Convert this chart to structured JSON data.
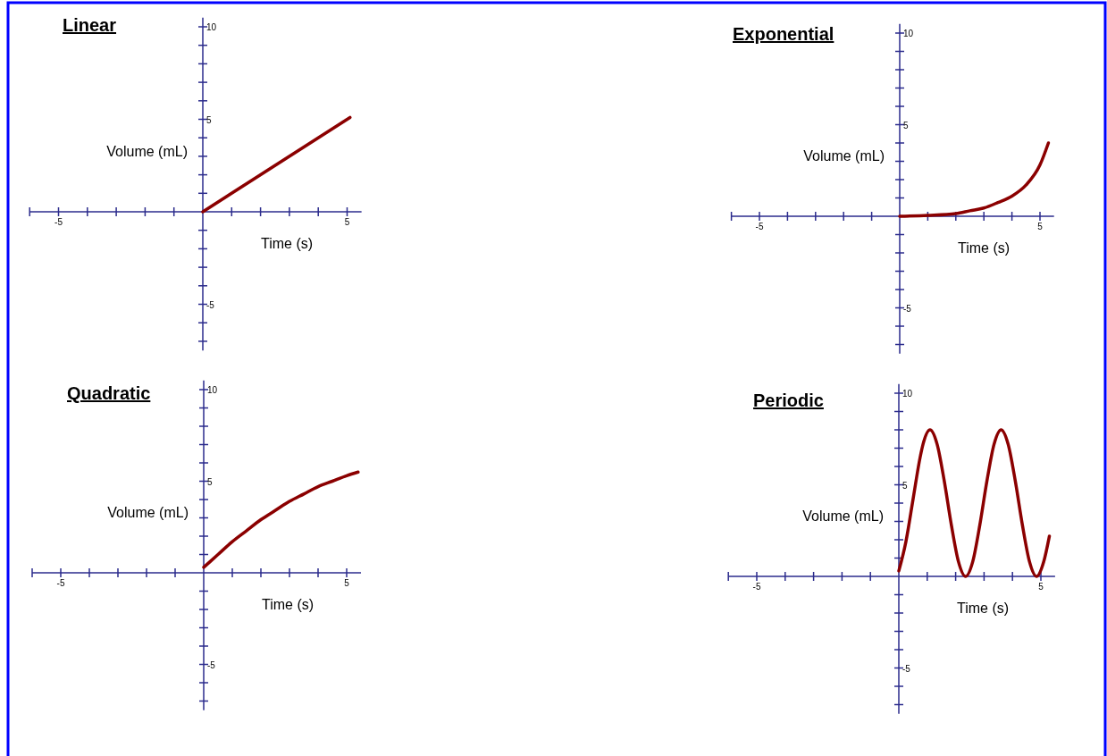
{
  "chart_data": [
    {
      "type": "line",
      "title": "Linear",
      "xlabel": "Time (s)",
      "ylabel": "Volume (mL)",
      "x": [
        0,
        5.1
      ],
      "series": [
        {
          "color": "#8b0000",
          "values": [
            0,
            5.1
          ]
        }
      ],
      "xlim": [
        -6,
        5.5
      ],
      "ylim": [
        -7.5,
        10.5
      ],
      "xticks": [
        {
          "value": -6,
          "label": null
        },
        {
          "value": -5,
          "label": "-5"
        },
        {
          "value": -4,
          "label": null
        },
        {
          "value": -3,
          "label": null
        },
        {
          "value": -2,
          "label": null
        },
        {
          "value": -1,
          "label": null
        },
        {
          "value": 1,
          "label": null
        },
        {
          "value": 2,
          "label": null
        },
        {
          "value": 3,
          "label": null
        },
        {
          "value": 4,
          "label": null
        },
        {
          "value": 5,
          "label": "5"
        }
      ],
      "yticks": [
        {
          "value": -7,
          "label": null
        },
        {
          "value": -6,
          "label": null
        },
        {
          "value": -5,
          "label": "-5"
        },
        {
          "value": -4,
          "label": null
        },
        {
          "value": -3,
          "label": null
        },
        {
          "value": -2,
          "label": null
        },
        {
          "value": -1,
          "label": null
        },
        {
          "value": 1,
          "label": null
        },
        {
          "value": 2,
          "label": null
        },
        {
          "value": 3,
          "label": null
        },
        {
          "value": 4,
          "label": null
        },
        {
          "value": 5,
          "label": "5"
        },
        {
          "value": 6,
          "label": null
        },
        {
          "value": 7,
          "label": null
        },
        {
          "value": 8,
          "label": null
        },
        {
          "value": 9,
          "label": null
        },
        {
          "value": 10,
          "label": "10"
        }
      ]
    },
    {
      "type": "line",
      "title": "Exponential",
      "xlabel": "Time (s)",
      "ylabel": "Volume (mL)",
      "x": [
        0,
        1,
        2,
        2.5,
        3,
        3.5,
        4,
        4.5,
        5,
        5.3
      ],
      "series": [
        {
          "color": "#8b0000",
          "values": [
            0,
            0.05,
            0.15,
            0.3,
            0.45,
            0.75,
            1.1,
            1.7,
            2.8,
            4
          ]
        }
      ],
      "xlim": [
        -6,
        5.5
      ],
      "ylim": [
        -7.5,
        10.5
      ],
      "xticks": [
        {
          "value": -6,
          "label": null
        },
        {
          "value": -5,
          "label": "-5"
        },
        {
          "value": -4,
          "label": null
        },
        {
          "value": -3,
          "label": null
        },
        {
          "value": -2,
          "label": null
        },
        {
          "value": -1,
          "label": null
        },
        {
          "value": 1,
          "label": null
        },
        {
          "value": 2,
          "label": null
        },
        {
          "value": 3,
          "label": null
        },
        {
          "value": 4,
          "label": null
        },
        {
          "value": 5,
          "label": "5"
        }
      ],
      "yticks": [
        {
          "value": -7,
          "label": null
        },
        {
          "value": -6,
          "label": null
        },
        {
          "value": -5,
          "label": "-5"
        },
        {
          "value": -4,
          "label": null
        },
        {
          "value": -3,
          "label": null
        },
        {
          "value": -2,
          "label": null
        },
        {
          "value": -1,
          "label": null
        },
        {
          "value": 1,
          "label": null
        },
        {
          "value": 2,
          "label": null
        },
        {
          "value": 3,
          "label": null
        },
        {
          "value": 4,
          "label": null
        },
        {
          "value": 5,
          "label": "5"
        },
        {
          "value": 6,
          "label": null
        },
        {
          "value": 7,
          "label": null
        },
        {
          "value": 8,
          "label": null
        },
        {
          "value": 9,
          "label": null
        },
        {
          "value": 10,
          "label": "10"
        }
      ]
    },
    {
      "type": "line",
      "title": "Quadratic",
      "xlabel": "Time (s)",
      "ylabel": "Volume (mL)",
      "x": [
        0,
        0.5,
        1,
        1.5,
        2,
        2.5,
        3,
        3.5,
        4,
        4.5,
        5,
        5.4
      ],
      "series": [
        {
          "color": "#8b0000",
          "values": [
            0.3,
            1,
            1.7,
            2.3,
            2.9,
            3.4,
            3.9,
            4.3,
            4.7,
            5,
            5.3,
            5.5
          ]
        }
      ],
      "xlim": [
        -6,
        5.5
      ],
      "ylim": [
        -7.5,
        10.5
      ],
      "xticks": [
        {
          "value": -6,
          "label": null
        },
        {
          "value": -5,
          "label": "-5"
        },
        {
          "value": -4,
          "label": null
        },
        {
          "value": -3,
          "label": null
        },
        {
          "value": -2,
          "label": null
        },
        {
          "value": -1,
          "label": null
        },
        {
          "value": 1,
          "label": null
        },
        {
          "value": 2,
          "label": null
        },
        {
          "value": 3,
          "label": null
        },
        {
          "value": 4,
          "label": null
        },
        {
          "value": 5,
          "label": "5"
        }
      ],
      "yticks": [
        {
          "value": -7,
          "label": null
        },
        {
          "value": -6,
          "label": null
        },
        {
          "value": -5,
          "label": "-5"
        },
        {
          "value": -4,
          "label": null
        },
        {
          "value": -3,
          "label": null
        },
        {
          "value": -2,
          "label": null
        },
        {
          "value": -1,
          "label": null
        },
        {
          "value": 1,
          "label": null
        },
        {
          "value": 2,
          "label": null
        },
        {
          "value": 3,
          "label": null
        },
        {
          "value": 4,
          "label": null
        },
        {
          "value": 5,
          "label": "5"
        },
        {
          "value": 6,
          "label": null
        },
        {
          "value": 7,
          "label": null
        },
        {
          "value": 8,
          "label": null
        },
        {
          "value": 9,
          "label": null
        },
        {
          "value": 10,
          "label": "10"
        }
      ]
    },
    {
      "type": "line",
      "title": "Periodic",
      "xlabel": "Time (s)",
      "ylabel": "Volume (mL)",
      "x": [
        0,
        0.25,
        0.5,
        0.75,
        0.85,
        1.1,
        1.35,
        1.6,
        1.85,
        2.1,
        2.35,
        2.6,
        2.85,
        3.1,
        3.35,
        3.6,
        3.85,
        4.1,
        4.35,
        4.6,
        4.85,
        5.1,
        5.3
      ],
      "series": [
        {
          "color": "#8b0000",
          "values": [
            0.3,
            1.9,
            4.2,
            6.5,
            7.2,
            8,
            7.2,
            5.2,
            2.8,
            0.8,
            0,
            0.8,
            2.8,
            5.2,
            7.2,
            8,
            7.2,
            5.2,
            2.8,
            0.8,
            0,
            0.8,
            2.2
          ]
        }
      ],
      "xlim": [
        -6,
        5.5
      ],
      "ylim": [
        -7.5,
        10.5
      ],
      "xticks": [
        {
          "value": -6,
          "label": null
        },
        {
          "value": -5,
          "label": "-5"
        },
        {
          "value": -4,
          "label": null
        },
        {
          "value": -3,
          "label": null
        },
        {
          "value": -2,
          "label": null
        },
        {
          "value": -1,
          "label": null
        },
        {
          "value": 1,
          "label": null
        },
        {
          "value": 2,
          "label": null
        },
        {
          "value": 3,
          "label": null
        },
        {
          "value": 4,
          "label": null
        },
        {
          "value": 5,
          "label": "5"
        }
      ],
      "yticks": [
        {
          "value": -7,
          "label": null
        },
        {
          "value": -6,
          "label": null
        },
        {
          "value": -5,
          "label": "-5"
        },
        {
          "value": -4,
          "label": null
        },
        {
          "value": -3,
          "label": null
        },
        {
          "value": -2,
          "label": null
        },
        {
          "value": -1,
          "label": null
        },
        {
          "value": 1,
          "label": null
        },
        {
          "value": 2,
          "label": null
        },
        {
          "value": 3,
          "label": null
        },
        {
          "value": 4,
          "label": null
        },
        {
          "value": 5,
          "label": "5"
        },
        {
          "value": 6,
          "label": null
        },
        {
          "value": 7,
          "label": null
        },
        {
          "value": 8,
          "label": null
        },
        {
          "value": 9,
          "label": null
        },
        {
          "value": 10,
          "label": "10"
        }
      ]
    }
  ]
}
